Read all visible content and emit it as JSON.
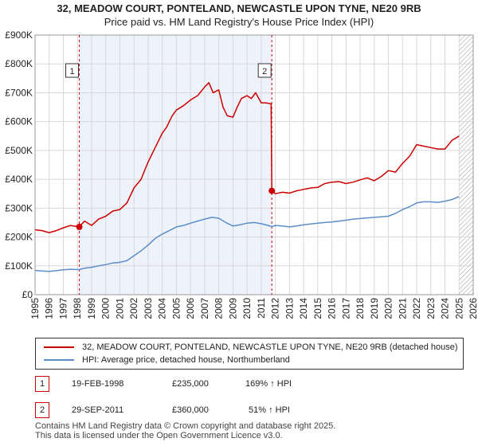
{
  "title_line1": "32, MEADOW COURT, PONTELAND, NEWCASTLE UPON TYNE, NE20 9RB",
  "title_line2": "Price paid vs. HM Land Registry's House Price Index (HPI)",
  "colors": {
    "property": "#cc0000",
    "hpi": "#5b8ec9",
    "shade": "#eef2fb",
    "grid": "#d8d8d8"
  },
  "chart_data": {
    "type": "line",
    "xlabel": "",
    "ylabel": "",
    "xlim": [
      1995,
      2026
    ],
    "ylim": [
      0,
      900000
    ],
    "x_ticks": [
      1995,
      1996,
      1997,
      1998,
      1999,
      2000,
      2001,
      2002,
      2003,
      2004,
      2005,
      2006,
      2007,
      2008,
      2009,
      2010,
      2011,
      2012,
      2013,
      2014,
      2015,
      2016,
      2017,
      2018,
      2019,
      2020,
      2021,
      2022,
      2023,
      2024,
      2025,
      2026
    ],
    "y_ticks": [
      0,
      100000,
      200000,
      300000,
      400000,
      500000,
      600000,
      700000,
      800000,
      900000
    ],
    "y_tick_labels": [
      "£0",
      "£100K",
      "£200K",
      "£300K",
      "£400K",
      "£500K",
      "£600K",
      "£700K",
      "£800K",
      "£900K"
    ],
    "shaded_period": [
      1998.13,
      2011.75
    ],
    "hatched_from": 2025.0,
    "series": [
      {
        "name": "32, MEADOW COURT, PONTELAND, NEWCASTLE UPON TYNE, NE20 9RB (detached house)",
        "x": [
          1995.0,
          1995.5,
          1996.0,
          1996.5,
          1997.0,
          1997.5,
          1998.13,
          1998.5,
          1999.0,
          1999.5,
          2000.0,
          2000.5,
          2001.0,
          2001.5,
          2002.0,
          2002.5,
          2003.0,
          2003.5,
          2004.0,
          2004.3,
          2004.7,
          2005.0,
          2005.5,
          2006.0,
          2006.5,
          2007.0,
          2007.3,
          2007.6,
          2008.0,
          2008.3,
          2008.6,
          2009.0,
          2009.3,
          2009.6,
          2010.0,
          2010.3,
          2010.6,
          2011.0,
          2011.3,
          2011.7,
          2011.75,
          2012.0,
          2012.5,
          2013.0,
          2013.5,
          2014.0,
          2014.5,
          2015.0,
          2015.5,
          2016.0,
          2016.5,
          2017.0,
          2017.5,
          2018.0,
          2018.5,
          2019.0,
          2019.5,
          2020.0,
          2020.5,
          2021.0,
          2021.5,
          2022.0,
          2022.5,
          2023.0,
          2023.5,
          2024.0,
          2024.5,
          2025.0
        ],
        "values": [
          225000,
          222000,
          215000,
          222000,
          232000,
          240000,
          235000,
          255000,
          240000,
          262000,
          272000,
          290000,
          295000,
          318000,
          370000,
          400000,
          460000,
          510000,
          560000,
          580000,
          620000,
          640000,
          655000,
          675000,
          690000,
          720000,
          735000,
          700000,
          710000,
          650000,
          620000,
          615000,
          650000,
          680000,
          690000,
          680000,
          700000,
          665000,
          665000,
          662000,
          360000,
          350000,
          355000,
          352000,
          360000,
          365000,
          370000,
          372000,
          385000,
          390000,
          392000,
          385000,
          390000,
          398000,
          405000,
          395000,
          410000,
          430000,
          425000,
          455000,
          480000,
          520000,
          515000,
          510000,
          505000,
          505000,
          535000,
          550000
        ]
      },
      {
        "name": "HPI: Average price, detached house, Northumberland",
        "x": [
          1995.0,
          1995.5,
          1996.0,
          1996.5,
          1997.0,
          1997.5,
          1998.13,
          1998.5,
          1999.0,
          1999.5,
          2000.0,
          2000.5,
          2001.0,
          2001.5,
          2002.0,
          2002.5,
          2003.0,
          2003.5,
          2004.0,
          2004.5,
          2005.0,
          2005.5,
          2006.0,
          2006.5,
          2007.0,
          2007.5,
          2008.0,
          2008.5,
          2009.0,
          2009.5,
          2010.0,
          2010.5,
          2011.0,
          2011.5,
          2011.75,
          2012.0,
          2012.5,
          2013.0,
          2013.5,
          2014.0,
          2014.5,
          2015.0,
          2015.5,
          2016.0,
          2016.5,
          2017.0,
          2017.5,
          2018.0,
          2018.5,
          2019.0,
          2019.5,
          2020.0,
          2020.5,
          2021.0,
          2021.5,
          2022.0,
          2022.5,
          2023.0,
          2023.5,
          2024.0,
          2024.5,
          2025.0
        ],
        "values": [
          84000,
          82000,
          81000,
          83000,
          86000,
          88000,
          87000,
          92000,
          95000,
          100000,
          104000,
          110000,
          112000,
          118000,
          135000,
          152000,
          172000,
          195000,
          210000,
          222000,
          235000,
          240000,
          248000,
          255000,
          262000,
          268000,
          265000,
          250000,
          238000,
          242000,
          248000,
          250000,
          246000,
          240000,
          236000,
          240000,
          238000,
          235000,
          238000,
          242000,
          245000,
          248000,
          250000,
          252000,
          255000,
          258000,
          262000,
          264000,
          266000,
          268000,
          270000,
          272000,
          282000,
          295000,
          305000,
          318000,
          322000,
          322000,
          320000,
          324000,
          330000,
          340000
        ]
      }
    ],
    "sales": [
      {
        "label": "1",
        "x": 1998.13,
        "y": 235000
      },
      {
        "label": "2",
        "x": 2011.75,
        "y": 360000
      }
    ]
  },
  "legend": {
    "property": "32, MEADOW COURT, PONTELAND, NEWCASTLE UPON TYNE, NE20 9RB (detached house)",
    "hpi": "HPI: Average price, detached house, Northumberland"
  },
  "transactions": [
    {
      "num": "1",
      "date": "19-FEB-1998",
      "price": "£235,000",
      "hpi": "169% ↑ HPI"
    },
    {
      "num": "2",
      "date": "29-SEP-2011",
      "price": "£360,000",
      "hpi": "51% ↑ HPI"
    }
  ],
  "footer_line1": "Contains HM Land Registry data © Crown copyright and database right 2025.",
  "footer_line2": "This data is licensed under the Open Government Licence v3.0."
}
